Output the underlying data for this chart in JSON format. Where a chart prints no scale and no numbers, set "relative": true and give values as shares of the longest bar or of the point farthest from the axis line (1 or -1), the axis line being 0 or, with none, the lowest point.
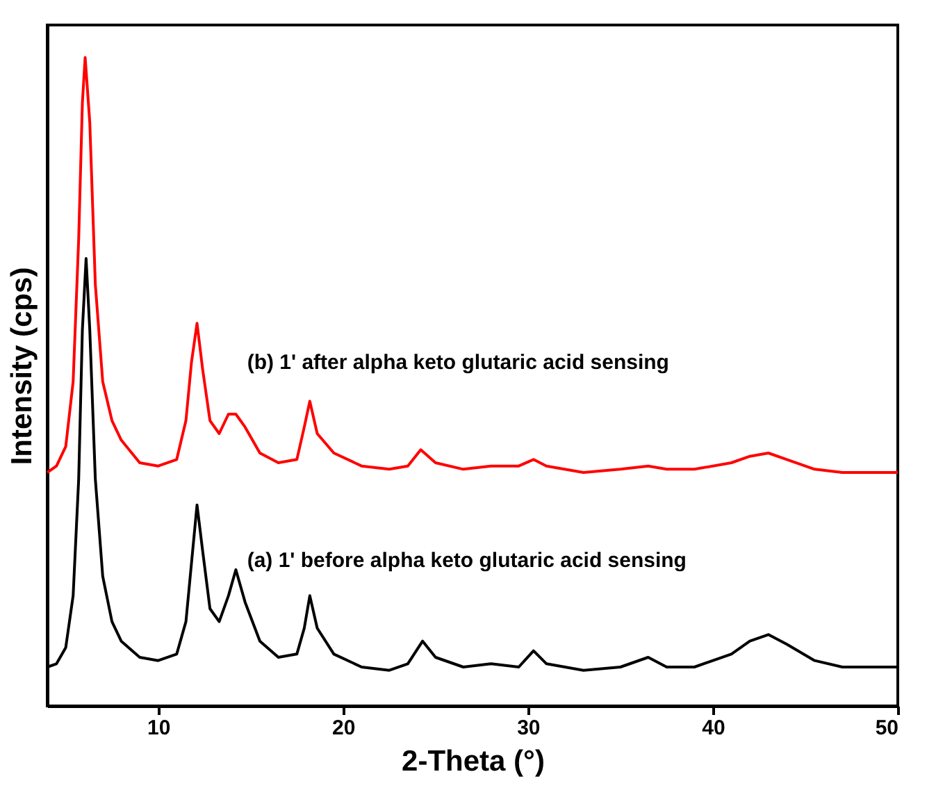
{
  "chart_data": {
    "type": "line",
    "relative": true,
    "xlabel": "2-Theta (°)",
    "ylabel": "Intensity (cps)",
    "xlim": [
      4,
      50
    ],
    "xticks": [
      10,
      20,
      30,
      40,
      50
    ],
    "grid": false,
    "marker": "none",
    "line_style": "solid",
    "series": [
      {
        "name": "(b) 1' after alpha keto glutaric acid sensing",
        "color": "#ff0000",
        "x": [
          4.0,
          4.5,
          5.0,
          5.4,
          5.7,
          5.9,
          6.05,
          6.3,
          6.6,
          7.0,
          7.5,
          8.0,
          9.0,
          10,
          11,
          11.5,
          11.8,
          12.1,
          12.4,
          12.8,
          13.3,
          13.8,
          14.2,
          14.7,
          15.5,
          16.5,
          17.5,
          17.9,
          18.2,
          18.6,
          19.5,
          21,
          22.5,
          23.5,
          24.2,
          25,
          26.5,
          28,
          29.5,
          30.3,
          31,
          33,
          35,
          36.5,
          37.5,
          39,
          41,
          42,
          43,
          44,
          45.5,
          47,
          50
        ],
        "values": [
          0.36,
          0.37,
          0.4,
          0.5,
          0.72,
          0.93,
          1.0,
          0.9,
          0.65,
          0.5,
          0.44,
          0.41,
          0.375,
          0.37,
          0.38,
          0.44,
          0.53,
          0.59,
          0.52,
          0.44,
          0.42,
          0.45,
          0.45,
          0.43,
          0.39,
          0.375,
          0.38,
          0.43,
          0.47,
          0.42,
          0.39,
          0.37,
          0.365,
          0.37,
          0.395,
          0.375,
          0.365,
          0.37,
          0.37,
          0.38,
          0.37,
          0.36,
          0.365,
          0.37,
          0.365,
          0.365,
          0.375,
          0.385,
          0.39,
          0.38,
          0.365,
          0.36,
          0.36
        ]
      },
      {
        "name": "(a) 1' before alpha keto glutaric acid sensing",
        "color": "#000000",
        "x": [
          4.0,
          4.5,
          5.0,
          5.4,
          5.7,
          5.9,
          6.1,
          6.3,
          6.6,
          7.0,
          7.5,
          8.0,
          9.0,
          10,
          11,
          11.5,
          11.8,
          12.1,
          12.4,
          12.8,
          13.3,
          13.8,
          14.2,
          14.7,
          15.5,
          16.5,
          17.5,
          17.9,
          18.2,
          18.6,
          19.5,
          21,
          22.5,
          23.5,
          24.3,
          25,
          26.5,
          28,
          29.5,
          30.3,
          31,
          33,
          35,
          36.5,
          37.5,
          39,
          41,
          42,
          43,
          44,
          45.5,
          47,
          50
        ],
        "values": [
          0.06,
          0.065,
          0.09,
          0.17,
          0.35,
          0.58,
          0.69,
          0.58,
          0.35,
          0.2,
          0.13,
          0.1,
          0.075,
          0.07,
          0.08,
          0.13,
          0.22,
          0.31,
          0.24,
          0.15,
          0.13,
          0.17,
          0.21,
          0.16,
          0.1,
          0.075,
          0.08,
          0.12,
          0.17,
          0.12,
          0.08,
          0.06,
          0.055,
          0.065,
          0.1,
          0.075,
          0.06,
          0.065,
          0.06,
          0.085,
          0.065,
          0.055,
          0.06,
          0.075,
          0.06,
          0.06,
          0.08,
          0.1,
          0.11,
          0.095,
          0.07,
          0.06,
          0.06
        ]
      }
    ]
  }
}
